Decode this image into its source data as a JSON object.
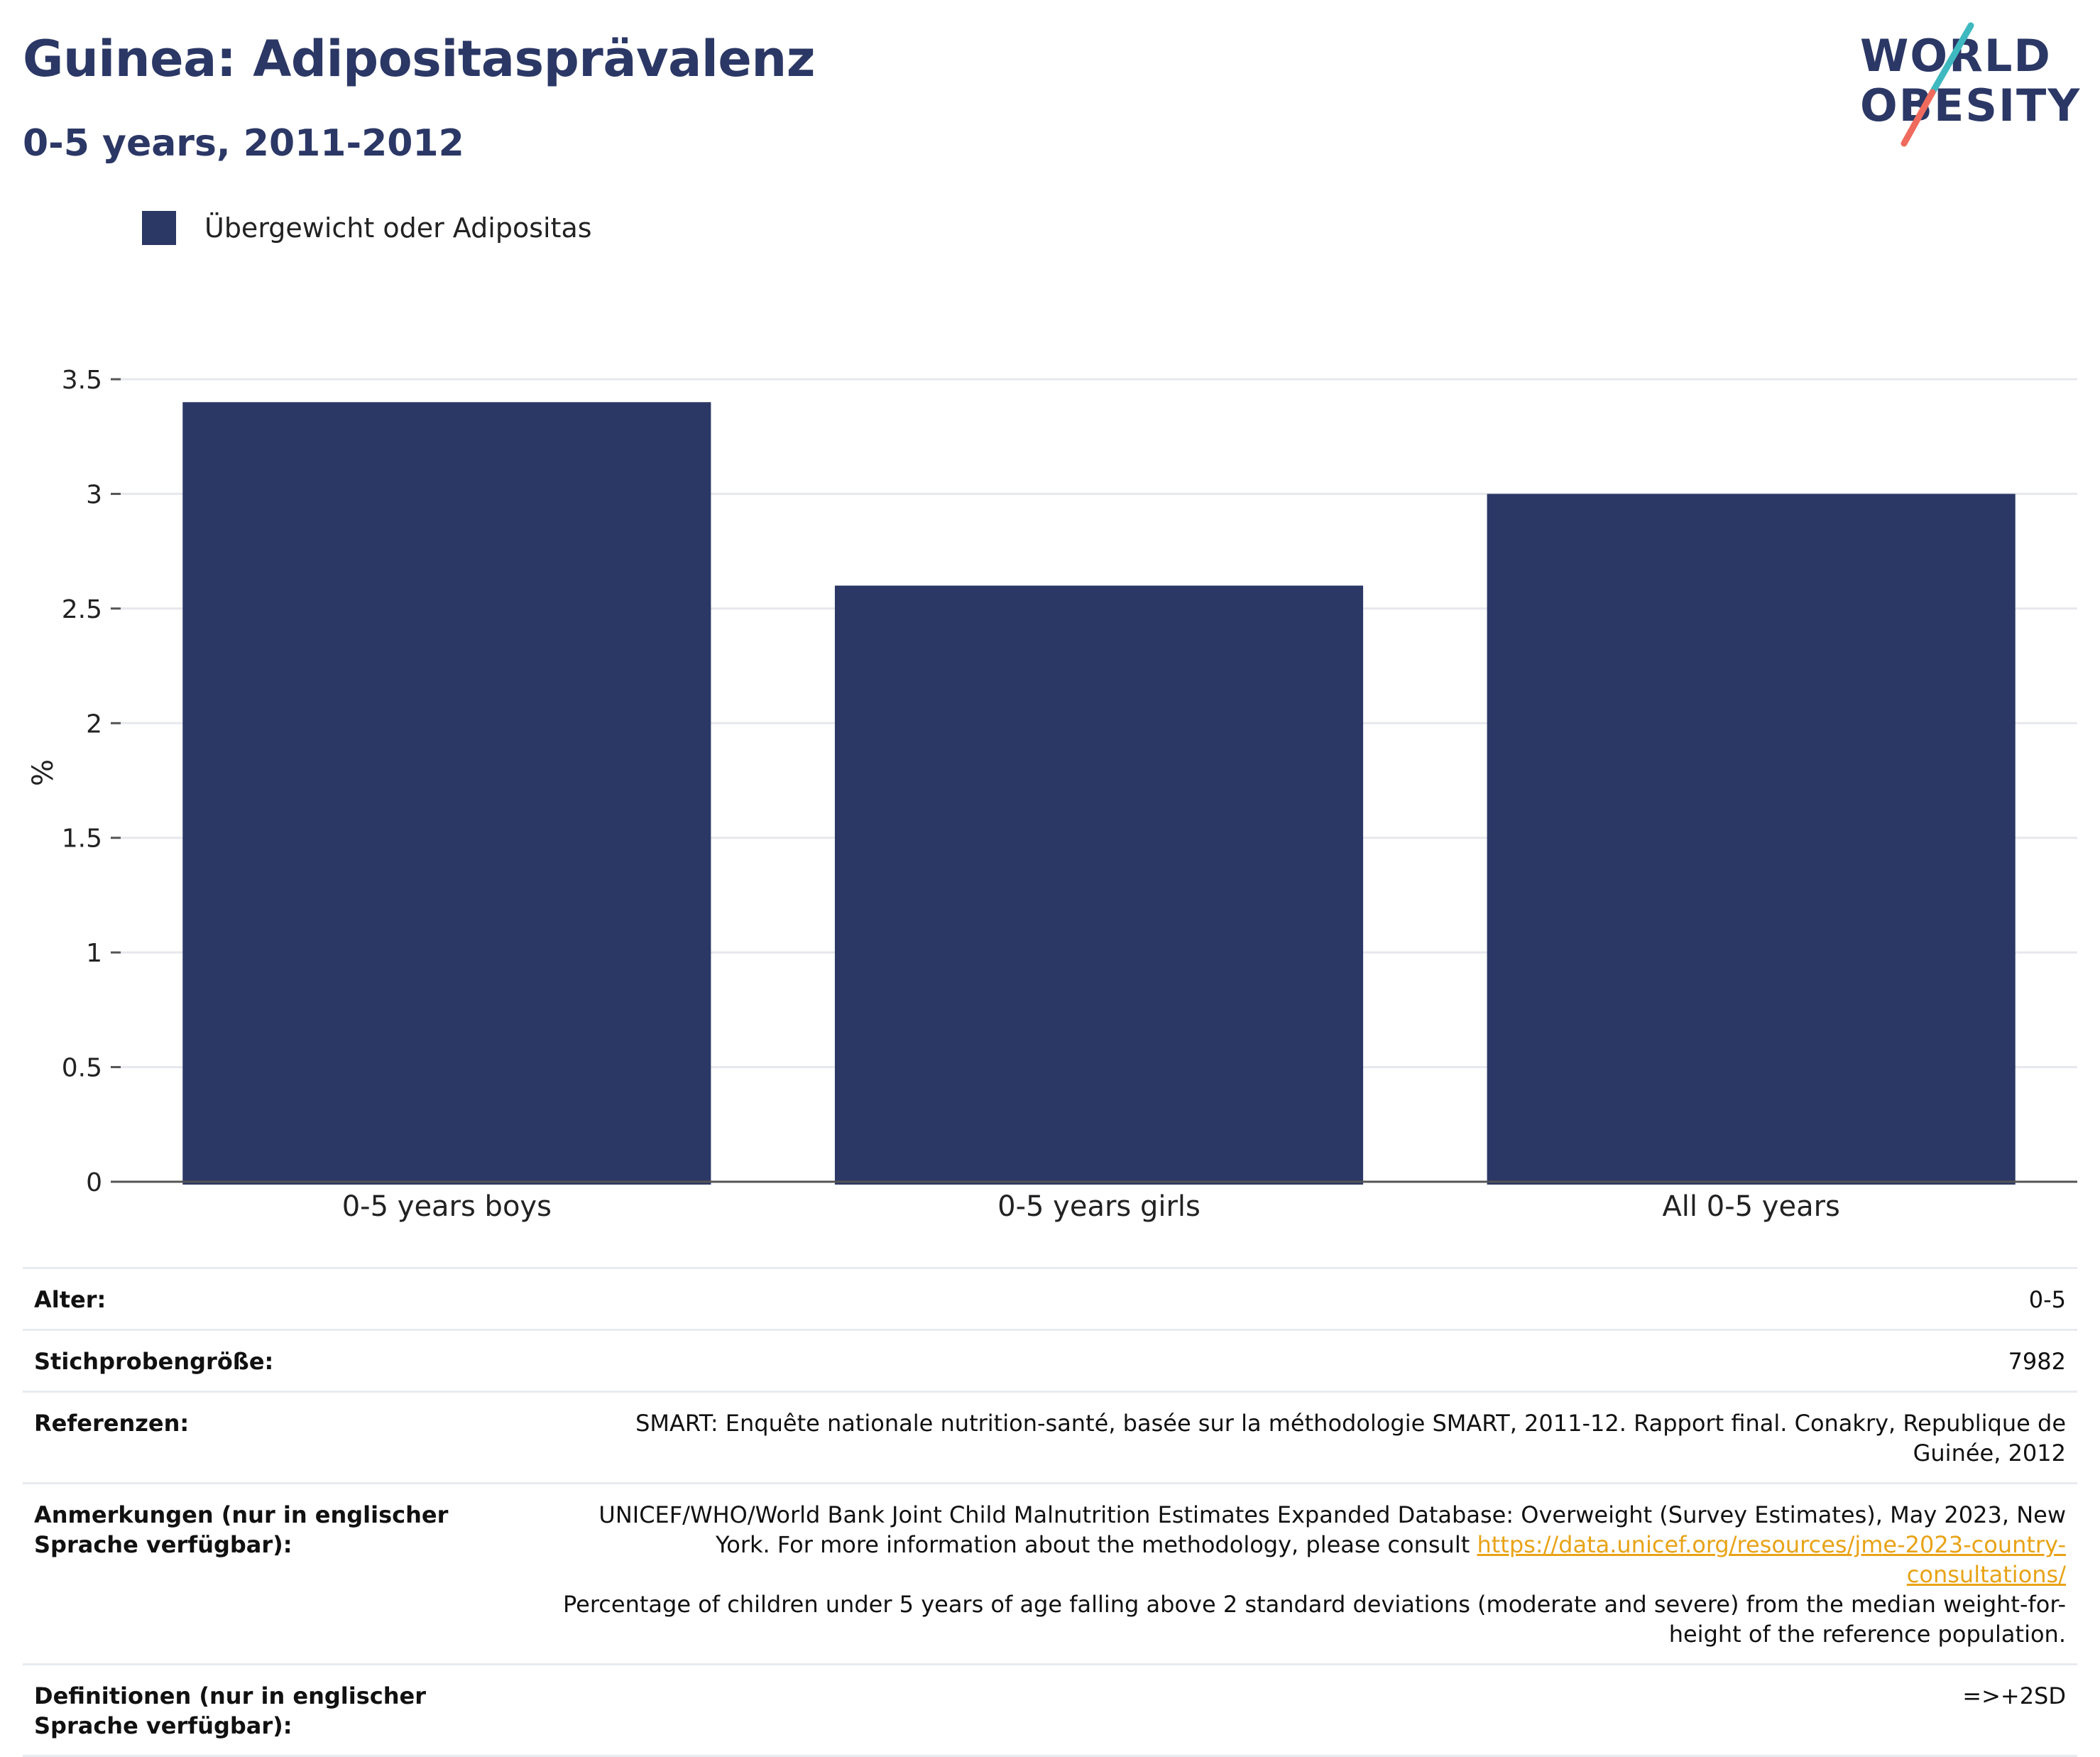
{
  "header": {
    "title": "Guinea: Adipositasprävalenz",
    "subtitle": "0-5 years, 2011-2012"
  },
  "logo": {
    "line1": "WORLD",
    "line2": "OBESITY",
    "colors": {
      "text": "#2b3765",
      "slash_top": "#3fb9c0",
      "slash_bottom": "#ef6b5d"
    }
  },
  "legend": {
    "label": "Übergewicht oder Adipositas",
    "color": "#2b3765"
  },
  "chart_data": {
    "type": "bar",
    "categories": [
      "0-5 years boys",
      "0-5 years girls",
      "All 0-5 years"
    ],
    "series": [
      {
        "name": "Übergewicht oder Adipositas",
        "values": [
          3.4,
          2.6,
          3.0
        ],
        "color": "#2b3765"
      }
    ],
    "ylabel": "%",
    "xlabel": "",
    "ylim": [
      0,
      3.5
    ],
    "yticks": [
      0,
      0.5,
      1,
      1.5,
      2,
      2.5,
      3,
      3.5
    ],
    "ytick_labels": [
      "0",
      "0.5",
      "1",
      "1.5",
      "2",
      "2.5",
      "3",
      "3.5"
    ],
    "grid": true,
    "legend_position": "top-left"
  },
  "info": {
    "age": {
      "label": "Alter:",
      "value": "0-5"
    },
    "sample": {
      "label": "Stichprobengröße:",
      "value": "7982"
    },
    "references": {
      "label": "Referenzen:",
      "value": "SMART: Enquête nationale nutrition-santé, basée sur la méthodologie SMART, 2011-12. Rapport final. Conakry, Republique de Guinée, 2012"
    },
    "notes": {
      "label": "Anmerkungen (nur in englischer Sprache verfügbar):",
      "text_before": "UNICEF/WHO/World Bank Joint Child Malnutrition Estimates Expanded Database: Overweight (Survey Estimates), May 2023, New York. For more information about the methodology, please consult ",
      "link": "https://data.unicef.org/resources/jme-2023-country-consultations/",
      "text_after": "Percentage of children under 5 years of age falling above 2 standard deviations (moderate and severe) from the median weight-for-height of the reference population."
    },
    "definitions": {
      "label": "Definitionen (nur in englischer Sprache verfügbar):",
      "value": "=>+2SD"
    }
  }
}
